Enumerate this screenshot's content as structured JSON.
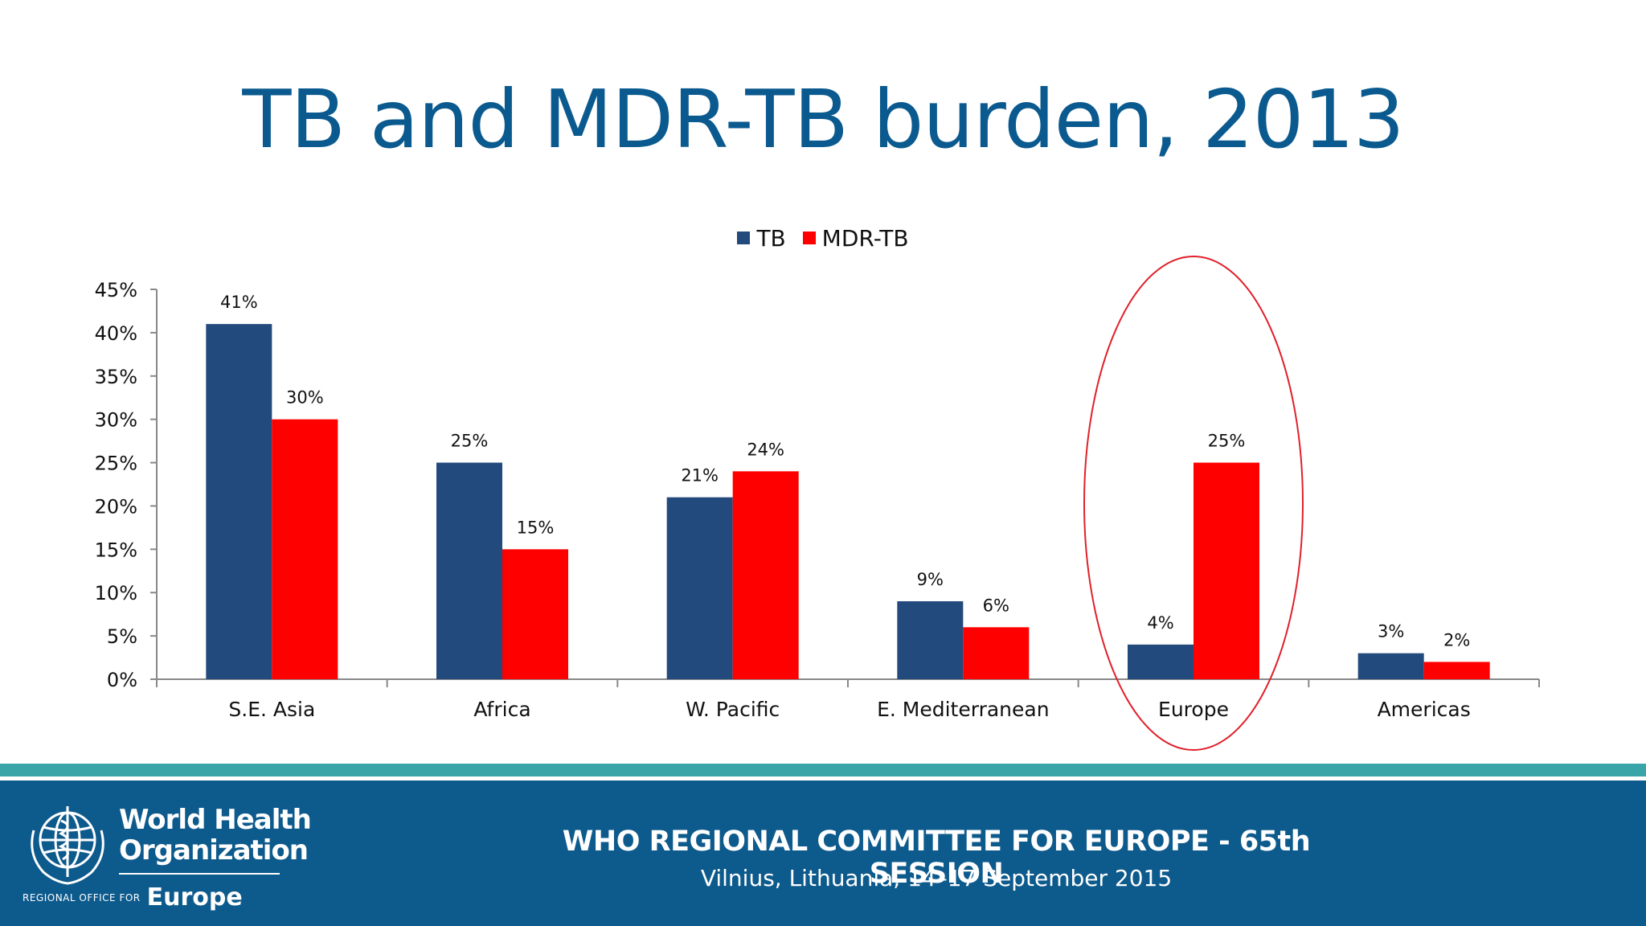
{
  "slide": {
    "title": "TB and MDR-TB burden, 2013"
  },
  "chart_data": {
    "type": "bar",
    "categories": [
      "S.E. Asia",
      "Africa",
      "W. Pacific",
      "E. Mediterranean",
      "Europe",
      "Americas"
    ],
    "series": [
      {
        "name": "TB",
        "color": "#234a7c",
        "values": [
          41,
          25,
          21,
          9,
          4,
          3
        ],
        "labels": [
          "41%",
          "25%",
          "21%",
          "9%",
          "4%",
          "3%"
        ]
      },
      {
        "name": "MDR-TB",
        "color": "#ff0000",
        "values": [
          30,
          15,
          24,
          6,
          25,
          2
        ],
        "labels": [
          "30%",
          "15%",
          "24%",
          "6%",
          "25%",
          "2%"
        ]
      }
    ],
    "yticks": [
      "0%",
      "5%",
      "10%",
      "15%",
      "20%",
      "25%",
      "30%",
      "35%",
      "40%",
      "45%"
    ],
    "ylim": [
      0,
      45
    ],
    "ytick_step": 5,
    "grid": false,
    "legend": "top-center",
    "highlight": {
      "category": "Europe",
      "shape": "ellipse",
      "color": "#e0202a"
    }
  },
  "footer": {
    "org_line1": "World Health",
    "org_line2": "Organization",
    "office_small": "REGIONAL OFFICE FOR",
    "office_big": "Europe",
    "event_title": "WHO REGIONAL COMMITTEE FOR EUROPE - 65th SESSION",
    "event_subtitle": "Vilnius, Lithuania, 14–17 September 2015"
  },
  "icons": {
    "logo": "who-emblem-icon"
  }
}
